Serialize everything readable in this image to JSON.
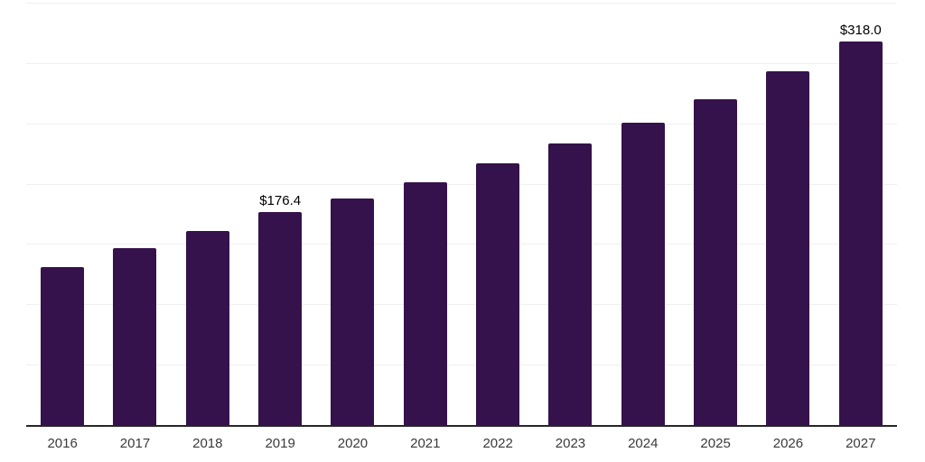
{
  "chart_data": {
    "type": "bar",
    "title": "",
    "xlabel": "",
    "ylabel": "",
    "categories": [
      "2016",
      "2017",
      "2018",
      "2019",
      "2020",
      "2021",
      "2022",
      "2023",
      "2024",
      "2025",
      "2026",
      "2027"
    ],
    "values": [
      131.1,
      146.6,
      160.9,
      176.4,
      187.4,
      201.4,
      217.1,
      233.0,
      250.7,
      270.0,
      293.4,
      318.0
    ],
    "data_labels": [
      "",
      "",
      "",
      "$176.4",
      "",
      "",
      "",
      "",
      "",
      "",
      "",
      "$318.0"
    ],
    "value_prefix": "$",
    "ylim": [
      0,
      350
    ],
    "gridline_interval": 50,
    "grid": "horizontal",
    "legend": "none",
    "colors": {
      "bar": "#35124B",
      "axis": "#262626",
      "gridline": "#f0f0f0",
      "background": "#ffffff",
      "tick_label": "#3a3a3a",
      "data_label": "#000000"
    }
  }
}
